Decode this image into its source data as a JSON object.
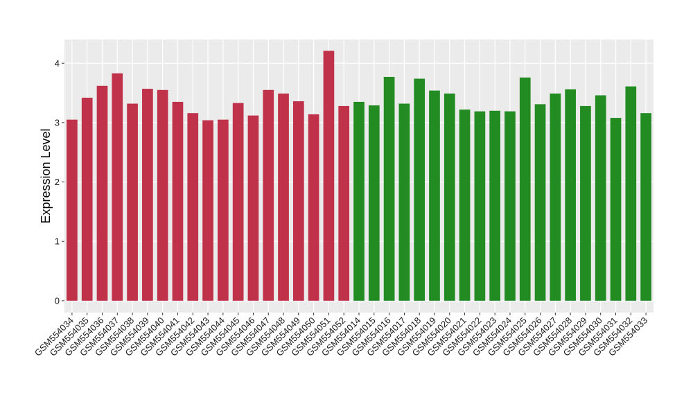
{
  "chart_data": {
    "type": "bar",
    "title": "",
    "xlabel": "",
    "ylabel": "Expression Level",
    "ylim": [
      -0.2,
      4.4
    ],
    "yticks": [
      0,
      1,
      2,
      3,
      4
    ],
    "grid": true,
    "background": "#ebebeb",
    "gridline_color": "#ffffff",
    "groups": [
      {
        "color": "#c0314a",
        "categories": [
          "GSM554034",
          "GSM554035",
          "GSM554036",
          "GSM554037",
          "GSM554038",
          "GSM554039",
          "GSM554040",
          "GSM554041",
          "GSM554042",
          "GSM554043",
          "GSM554044",
          "GSM554045",
          "GSM554046",
          "GSM554047",
          "GSM554048",
          "GSM554049",
          "GSM554050",
          "GSM554051",
          "GSM554052"
        ],
        "values": [
          3.05,
          3.42,
          3.62,
          3.83,
          3.32,
          3.57,
          3.55,
          3.35,
          3.16,
          3.04,
          3.05,
          3.33,
          3.12,
          3.55,
          3.49,
          3.36,
          3.14,
          4.21,
          3.28
        ]
      },
      {
        "color": "#228b22",
        "categories": [
          "GSM554014",
          "GSM554015",
          "GSM554016",
          "GSM554017",
          "GSM554018",
          "GSM554019",
          "GSM554020",
          "GSM554021",
          "GSM554022",
          "GSM554023",
          "GSM554024",
          "GSM554025",
          "GSM554026",
          "GSM554027",
          "GSM554028",
          "GSM554029",
          "GSM554030",
          "GSM554031",
          "GSM554032",
          "GSM554033"
        ],
        "values": [
          3.35,
          3.29,
          3.77,
          3.32,
          3.74,
          3.54,
          3.49,
          3.22,
          3.19,
          3.2,
          3.19,
          3.76,
          3.31,
          3.49,
          3.56,
          3.28,
          3.46,
          3.08,
          3.61,
          3.16
        ]
      }
    ]
  }
}
